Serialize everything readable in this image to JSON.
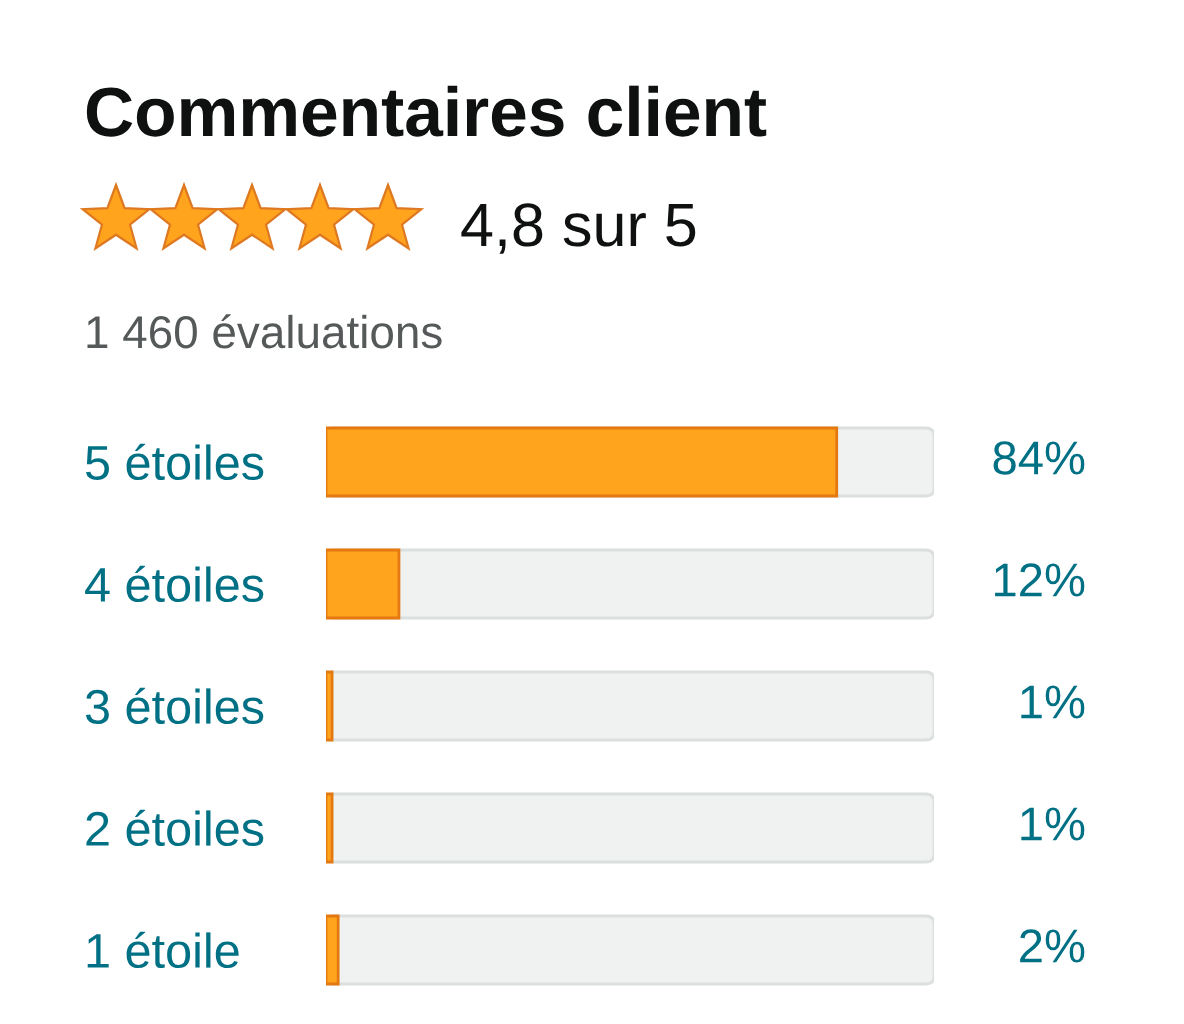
{
  "chart_data": {
    "type": "bar",
    "orientation": "horizontal",
    "title": "Commentaires client",
    "subtitle": "4,8 sur 5",
    "annotations": [
      "1 460 évaluations"
    ],
    "categories": [
      "5 étoiles",
      "4 étoiles",
      "3 étoiles",
      "2 étoiles",
      "1 étoile"
    ],
    "values": [
      84,
      12,
      1,
      1,
      2
    ],
    "value_labels": [
      "84%",
      "12%",
      "1%",
      "1%",
      "2%"
    ],
    "color": "#ffa41c",
    "xlim": [
      0,
      100
    ],
    "tick_labels": "y"
  }
}
